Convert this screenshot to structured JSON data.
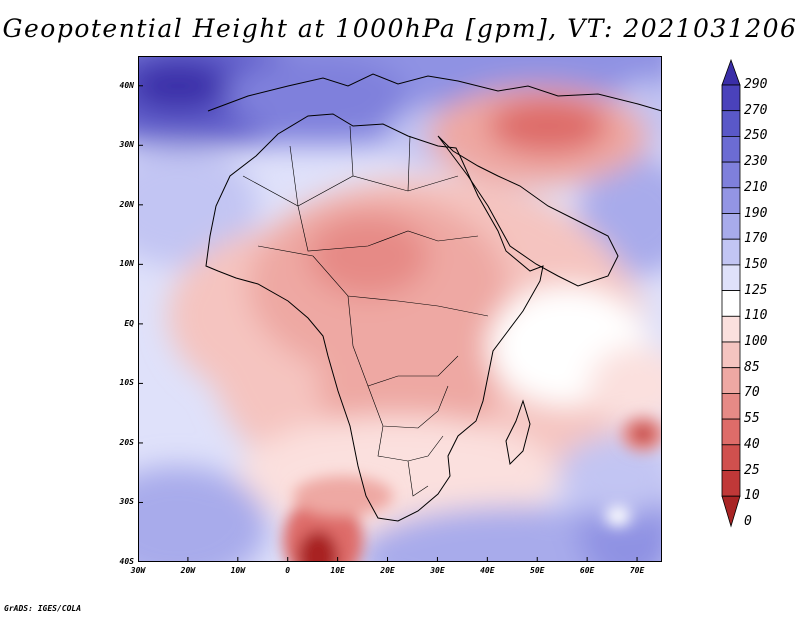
{
  "title": "Geopotential Height at 1000hPa [gpm], VT: 2021031206",
  "credit": "GrADS: IGES/COLA",
  "map": {
    "projection": "latlon",
    "lon_range": [
      -30,
      75
    ],
    "lat_range": [
      -40,
      45
    ],
    "lat_ticks": [
      {
        "value": 40,
        "label": "40N"
      },
      {
        "value": 30,
        "label": "30N"
      },
      {
        "value": 20,
        "label": "20N"
      },
      {
        "value": 10,
        "label": "10N"
      },
      {
        "value": 0,
        "label": "EQ"
      },
      {
        "value": -10,
        "label": "10S"
      },
      {
        "value": -20,
        "label": "20S"
      },
      {
        "value": -30,
        "label": "30S"
      },
      {
        "value": -40,
        "label": "40S"
      }
    ],
    "lon_ticks": [
      {
        "value": -30,
        "label": "30W"
      },
      {
        "value": -20,
        "label": "20W"
      },
      {
        "value": -10,
        "label": "10W"
      },
      {
        "value": 0,
        "label": "0"
      },
      {
        "value": 10,
        "label": "10E"
      },
      {
        "value": 20,
        "label": "20E"
      },
      {
        "value": 30,
        "label": "30E"
      },
      {
        "value": 40,
        "label": "40E"
      },
      {
        "value": 50,
        "label": "50E"
      },
      {
        "value": 60,
        "label": "60E"
      },
      {
        "value": 70,
        "label": "70E"
      }
    ]
  },
  "colorbar": {
    "levels": [
      "290",
      "270",
      "250",
      "230",
      "210",
      "190",
      "170",
      "150",
      "125",
      "110",
      "100",
      "85",
      "70",
      "55",
      "40",
      "25",
      "10",
      "0"
    ],
    "colors": [
      "#3a2ea8",
      "#4a42bb",
      "#5a58c8",
      "#6c6cd3",
      "#7f80dc",
      "#9395e4",
      "#a8abeb",
      "#c2c5f3",
      "#dfe1fa",
      "#ffffff",
      "#fbe0de",
      "#f5c4c0",
      "#eea8a3",
      "#e68a86",
      "#de6c69",
      "#d0504e",
      "#c03838",
      "#a82424"
    ]
  },
  "field_features": [
    {
      "name": "low-center-arabia",
      "lon": 52,
      "lat": 34,
      "value": 40
    },
    {
      "name": "low-center-sahara",
      "lon": 20,
      "lat": 15,
      "value": 70
    },
    {
      "name": "low-center-mascarene",
      "lon": 71,
      "lat": -18,
      "value": 25
    },
    {
      "name": "low-center-south-atlantic",
      "lon": 8,
      "lat": -38,
      "value": 10
    },
    {
      "name": "high-center-azores",
      "lon": -22,
      "lat": 40,
      "value": 290
    },
    {
      "name": "high-center-central-asia",
      "lon": 66,
      "lat": 40,
      "value": 200
    },
    {
      "name": "high-center-southern-ocean",
      "lon": 25,
      "lat": -39,
      "value": 210
    },
    {
      "name": "high-center-indian-ocean",
      "lon": 55,
      "lat": -36,
      "value": 220
    }
  ]
}
